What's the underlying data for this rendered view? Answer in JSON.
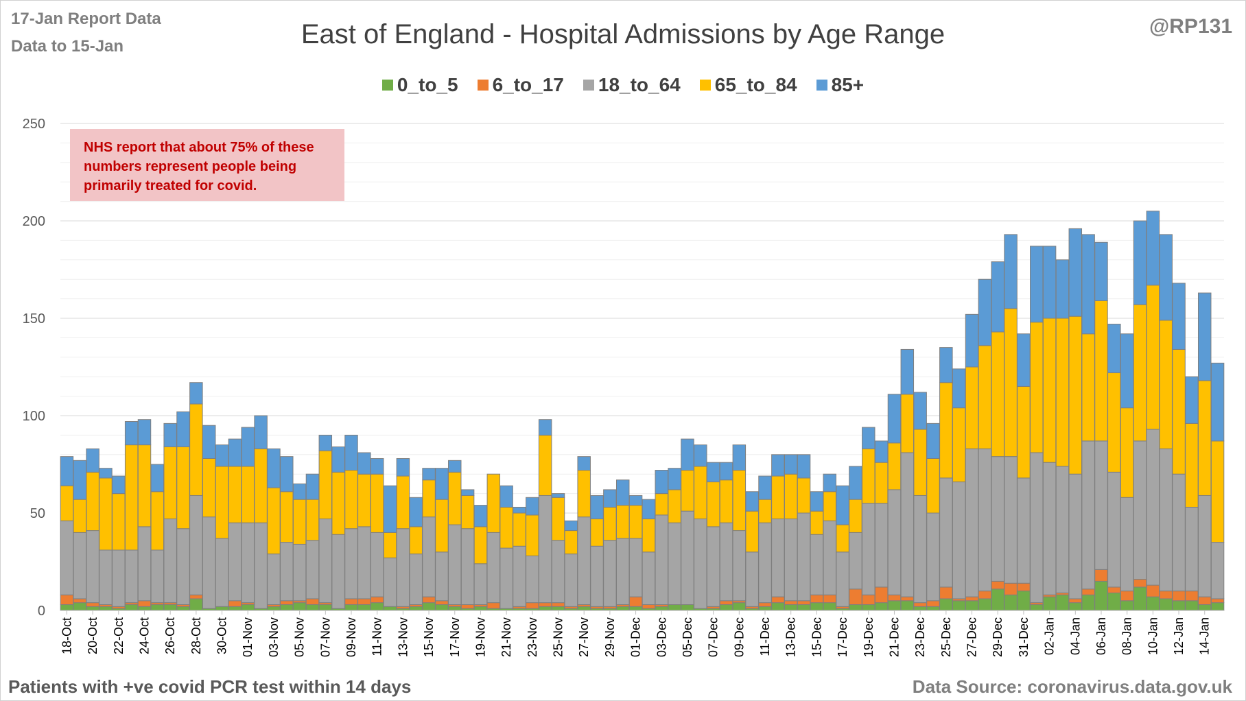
{
  "header": {
    "report_line1": "17-Jan Report Data",
    "report_line2": "Data to 15-Jan",
    "handle": "@RP131"
  },
  "footer": {
    "left": "Patients with  +ve covid PCR test within 14 days",
    "right": "Data Source: coronavirus.data.gov.uk"
  },
  "note": {
    "lines": [
      "NHS report that about 75% of these",
      "numbers represent people being",
      "primarily treated for covid."
    ],
    "bg_color": "#f2c4c6",
    "text_color": "#c00000"
  },
  "chart_data": {
    "type": "bar",
    "stacked": true,
    "title": "East of England - Hospital Admissions by Age Range",
    "xlabel": "",
    "ylabel": "",
    "ylim": [
      0,
      250
    ],
    "yticks": [
      0,
      50,
      100,
      150,
      200,
      250
    ],
    "grid": true,
    "legend_position": "top",
    "categories": [
      "18-Oct",
      "19-Oct",
      "20-Oct",
      "21-Oct",
      "22-Oct",
      "23-Oct",
      "24-Oct",
      "25-Oct",
      "26-Oct",
      "27-Oct",
      "28-Oct",
      "29-Oct",
      "30-Oct",
      "31-Oct",
      "01-Nov",
      "02-Nov",
      "03-Nov",
      "04-Nov",
      "05-Nov",
      "06-Nov",
      "07-Nov",
      "08-Nov",
      "09-Nov",
      "10-Nov",
      "11-Nov",
      "12-Nov",
      "13-Nov",
      "14-Nov",
      "15-Nov",
      "16-Nov",
      "17-Nov",
      "18-Nov",
      "19-Nov",
      "20-Nov",
      "21-Nov",
      "22-Nov",
      "23-Nov",
      "24-Nov",
      "25-Nov",
      "26-Nov",
      "27-Nov",
      "28-Nov",
      "29-Nov",
      "30-Nov",
      "01-Dec",
      "02-Dec",
      "03-Dec",
      "04-Dec",
      "05-Dec",
      "06-Dec",
      "07-Dec",
      "08-Dec",
      "09-Dec",
      "10-Dec",
      "11-Dec",
      "12-Dec",
      "13-Dec",
      "14-Dec",
      "15-Dec",
      "16-Dec",
      "17-Dec",
      "18-Dec",
      "19-Dec",
      "20-Dec",
      "21-Dec",
      "22-Dec",
      "23-Dec",
      "24-Dec",
      "25-Dec",
      "26-Dec",
      "27-Dec",
      "28-Dec",
      "29-Dec",
      "30-Dec",
      "31-Dec",
      "01-Jan",
      "02-Jan",
      "03-Jan",
      "04-Jan",
      "05-Jan",
      "06-Jan",
      "07-Jan",
      "08-Jan",
      "09-Jan",
      "10-Jan",
      "11-Jan",
      "12-Jan",
      "13-Jan",
      "14-Jan",
      "15-Jan"
    ],
    "x_tick_labels": [
      "18-Oct",
      "20-Oct",
      "22-Oct",
      "24-Oct",
      "26-Oct",
      "28-Oct",
      "30-Oct",
      "01-Nov",
      "03-Nov",
      "05-Nov",
      "07-Nov",
      "09-Nov",
      "11-Nov",
      "13-Nov",
      "15-Nov",
      "17-Nov",
      "19-Nov",
      "21-Nov",
      "23-Nov",
      "25-Nov",
      "27-Nov",
      "29-Nov",
      "01-Dec",
      "03-Dec",
      "05-Dec",
      "07-Dec",
      "09-Dec",
      "11-Dec",
      "13-Dec",
      "15-Dec",
      "17-Dec",
      "19-Dec",
      "21-Dec",
      "23-Dec",
      "25-Dec",
      "27-Dec",
      "29-Dec",
      "31-Dec",
      "02-Jan",
      "04-Jan",
      "06-Jan",
      "08-Jan",
      "10-Jan",
      "12-Jan",
      "14-Jan"
    ],
    "series": [
      {
        "name": "0_to_5",
        "color": "#70ad47",
        "values": [
          3,
          4,
          2,
          2,
          1,
          3,
          2,
          3,
          3,
          2,
          6,
          1,
          2,
          2,
          3,
          1,
          2,
          3,
          4,
          3,
          3,
          1,
          3,
          3,
          4,
          2,
          1,
          2,
          4,
          3,
          2,
          1,
          2,
          1,
          1,
          1,
          1,
          2,
          2,
          1,
          2,
          1,
          1,
          2,
          2,
          1,
          2,
          3,
          3,
          1,
          1,
          3,
          4,
          1,
          2,
          4,
          3,
          3,
          4,
          4,
          1,
          3,
          3,
          4,
          5,
          5,
          2,
          2,
          6,
          5,
          5,
          6,
          11,
          8,
          10,
          3,
          7,
          8,
          4,
          8,
          15,
          9,
          5,
          12,
          7,
          6,
          5,
          5,
          3,
          4
        ]
      },
      {
        "name": "6_to_17",
        "color": "#ed7d31",
        "values": [
          5,
          2,
          2,
          1,
          1,
          1,
          3,
          1,
          1,
          1,
          2,
          0,
          0,
          3,
          1,
          0,
          1,
          2,
          1,
          3,
          1,
          0,
          3,
          3,
          3,
          0,
          1,
          1,
          3,
          2,
          1,
          2,
          1,
          3,
          0,
          1,
          3,
          2,
          2,
          1,
          1,
          1,
          1,
          1,
          5,
          2,
          1,
          0,
          0,
          0,
          1,
          2,
          1,
          1,
          2,
          3,
          2,
          2,
          4,
          4,
          1,
          8,
          5,
          8,
          3,
          2,
          2,
          3,
          6,
          1,
          2,
          4,
          4,
          6,
          4,
          1,
          1,
          1,
          2,
          3,
          6,
          3,
          5,
          4,
          6,
          4,
          5,
          5,
          4,
          2
        ]
      },
      {
        "name": "18_to_64",
        "color": "#a5a5a5",
        "values": [
          38,
          34,
          37,
          28,
          29,
          27,
          38,
          27,
          43,
          39,
          51,
          47,
          35,
          40,
          41,
          44,
          26,
          30,
          29,
          30,
          43,
          38,
          36,
          37,
          33,
          25,
          40,
          26,
          41,
          25,
          41,
          39,
          21,
          36,
          31,
          31,
          24,
          55,
          32,
          27,
          45,
          31,
          34,
          34,
          30,
          27,
          46,
          42,
          48,
          46,
          41,
          40,
          36,
          28,
          41,
          40,
          42,
          45,
          31,
          38,
          28,
          29,
          47,
          43,
          54,
          74,
          55,
          45,
          56,
          60,
          76,
          73,
          64,
          65,
          54,
          77,
          68,
          65,
          64,
          76,
          66,
          59,
          48,
          71,
          80,
          73,
          60,
          43,
          52,
          29
        ]
      },
      {
        "name": "65_to_84",
        "color": "#ffc000",
        "values": [
          18,
          17,
          30,
          37,
          29,
          54,
          42,
          30,
          37,
          42,
          47,
          30,
          37,
          29,
          29,
          38,
          34,
          26,
          23,
          21,
          35,
          32,
          30,
          27,
          30,
          13,
          27,
          14,
          19,
          27,
          27,
          17,
          19,
          30,
          21,
          17,
          21,
          31,
          22,
          12,
          24,
          14,
          17,
          17,
          17,
          17,
          11,
          17,
          21,
          27,
          23,
          22,
          31,
          21,
          12,
          22,
          23,
          18,
          12,
          15,
          14,
          17,
          28,
          21,
          24,
          30,
          34,
          28,
          49,
          38,
          42,
          53,
          64,
          76,
          47,
          67,
          74,
          76,
          81,
          55,
          72,
          51,
          46,
          70,
          74,
          66,
          64,
          43,
          59,
          52
        ]
      },
      {
        "name": "85+",
        "color": "#5b9bd5",
        "values": [
          15,
          20,
          12,
          5,
          9,
          12,
          13,
          14,
          12,
          18,
          11,
          17,
          11,
          14,
          20,
          17,
          20,
          18,
          8,
          13,
          8,
          13,
          18,
          11,
          8,
          24,
          9,
          15,
          6,
          16,
          6,
          3,
          11,
          0,
          11,
          3,
          9,
          8,
          2,
          5,
          7,
          12,
          9,
          13,
          5,
          10,
          12,
          11,
          16,
          11,
          10,
          9,
          13,
          10,
          12,
          11,
          10,
          12,
          10,
          9,
          20,
          17,
          11,
          11,
          25,
          23,
          19,
          18,
          18,
          20,
          27,
          34,
          36,
          38,
          27,
          39,
          37,
          30,
          45,
          51,
          30,
          25,
          38,
          43,
          38,
          44,
          34,
          24,
          45,
          40
        ]
      }
    ]
  }
}
